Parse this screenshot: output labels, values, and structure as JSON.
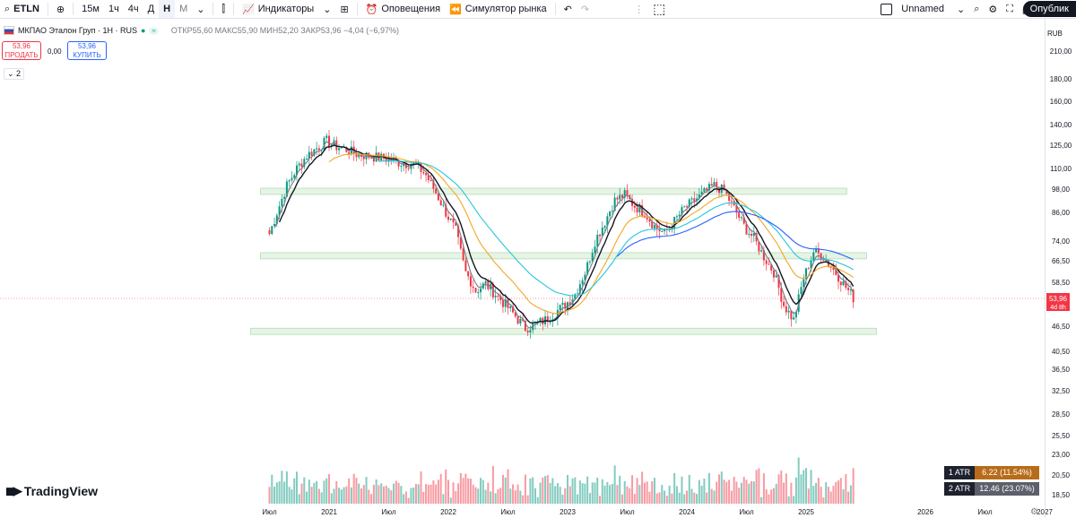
{
  "toolbar": {
    "symbol": "ETLN",
    "intervals": [
      "15м",
      "1ч",
      "4ч",
      "Д",
      "Н",
      "М"
    ],
    "active_interval": "Н",
    "indicators_label": "Индикаторы",
    "alerts_label": "Оповещения",
    "replay_label": "Симулятор рынка",
    "layout_name": "Unnamed",
    "publish_label": "Опублик"
  },
  "legend": {
    "name": "МКПАО Эталон Груп · 1Н · RUS",
    "ohlc_text": "ОТКР55,60  МАКС55,90  МИН52,20  ЗАКР53,96  −4,04 (−6,97%)"
  },
  "trade": {
    "sell_price": "53,96",
    "sell_label": "ПРОДАТЬ",
    "spread": "0,00",
    "buy_price": "53,96",
    "buy_label": "КУПИТЬ"
  },
  "collapse_label": "⌄ 2",
  "logo_text": "TradingView",
  "colors": {
    "up": "#089981",
    "down": "#f23645",
    "ema_black": "#131722",
    "ema_gray": "#787b86",
    "ema_orange": "#f5a623",
    "ema_teal": "#26c6da",
    "ema_blue": "#2962ff",
    "zone": "#4caf50"
  },
  "chart_data": {
    "type": "candlestick",
    "currency": "RUB",
    "price_axis": {
      "scale": "log",
      "ticks": [
        "210,00",
        "180,00",
        "160,00",
        "140,00",
        "125,00",
        "110,00",
        "98,00",
        "86,00",
        "74,00",
        "66,50",
        "58,50",
        "46,50",
        "40,50",
        "36,50",
        "32,50",
        "28,50",
        "25,50",
        "23,00",
        "20,50",
        "18,50"
      ]
    },
    "time_axis": {
      "ticks": [
        "Июл",
        "2021",
        "Июл",
        "2022",
        "Июл",
        "2023",
        "Июл",
        "2024",
        "Июл",
        "2025",
        "2026",
        "Июл",
        "2027"
      ]
    },
    "last_price": {
      "value": "53,96",
      "countdown": "4d 8h"
    },
    "close_approx": [
      {
        "t": "2020-07",
        "c": 74
      },
      {
        "t": "2020-08",
        "c": 86
      },
      {
        "t": "2020-09",
        "c": 100
      },
      {
        "t": "2020-10",
        "c": 110
      },
      {
        "t": "2020-11",
        "c": 118
      },
      {
        "t": "2020-12",
        "c": 123
      },
      {
        "t": "2021-01",
        "c": 128
      },
      {
        "t": "2021-02",
        "c": 124
      },
      {
        "t": "2021-03",
        "c": 122
      },
      {
        "t": "2021-04",
        "c": 119
      },
      {
        "t": "2021-05",
        "c": 118
      },
      {
        "t": "2021-06",
        "c": 117
      },
      {
        "t": "2021-07",
        "c": 116
      },
      {
        "t": "2021-08",
        "c": 114
      },
      {
        "t": "2021-09",
        "c": 113
      },
      {
        "t": "2021-10",
        "c": 112
      },
      {
        "t": "2021-11",
        "c": 106
      },
      {
        "t": "2021-12",
        "c": 96
      },
      {
        "t": "2022-01",
        "c": 86
      },
      {
        "t": "2022-02",
        "c": 78
      },
      {
        "t": "2022-03",
        "c": 62
      },
      {
        "t": "2022-04",
        "c": 56
      },
      {
        "t": "2022-05",
        "c": 58
      },
      {
        "t": "2022-06",
        "c": 55
      },
      {
        "t": "2022-07",
        "c": 52
      },
      {
        "t": "2022-08",
        "c": 49
      },
      {
        "t": "2022-09",
        "c": 46
      },
      {
        "t": "2022-10",
        "c": 47
      },
      {
        "t": "2022-11",
        "c": 48
      },
      {
        "t": "2022-12",
        "c": 50
      },
      {
        "t": "2023-01",
        "c": 52
      },
      {
        "t": "2023-02",
        "c": 55
      },
      {
        "t": "2023-03",
        "c": 62
      },
      {
        "t": "2023-04",
        "c": 74
      },
      {
        "t": "2023-05",
        "c": 82
      },
      {
        "t": "2023-06",
        "c": 92
      },
      {
        "t": "2023-07",
        "c": 95
      },
      {
        "t": "2023-08",
        "c": 89
      },
      {
        "t": "2023-09",
        "c": 86
      },
      {
        "t": "2023-10",
        "c": 80
      },
      {
        "t": "2023-11",
        "c": 77
      },
      {
        "t": "2023-12",
        "c": 82
      },
      {
        "t": "2024-01",
        "c": 88
      },
      {
        "t": "2024-02",
        "c": 92
      },
      {
        "t": "2024-03",
        "c": 96
      },
      {
        "t": "2024-04",
        "c": 100
      },
      {
        "t": "2024-05",
        "c": 97
      },
      {
        "t": "2024-06",
        "c": 88
      },
      {
        "t": "2024-07",
        "c": 80
      },
      {
        "t": "2024-08",
        "c": 75
      },
      {
        "t": "2024-09",
        "c": 68
      },
      {
        "t": "2024-10",
        "c": 62
      },
      {
        "t": "2024-11",
        "c": 52
      },
      {
        "t": "2024-12",
        "c": 48
      },
      {
        "t": "2025-01",
        "c": 60
      },
      {
        "t": "2025-02",
        "c": 70
      },
      {
        "t": "2025-03",
        "c": 68
      },
      {
        "t": "2025-04",
        "c": 63
      },
      {
        "t": "2025-05",
        "c": 58
      },
      {
        "t": "2025-06",
        "c": 54
      }
    ],
    "horizontal_zones": [
      {
        "low": 95.5,
        "high": 98.5
      },
      {
        "low": 67.5,
        "high": 69.5
      },
      {
        "low": 45.0,
        "high": 46.0
      }
    ],
    "atr": [
      {
        "label": "1 ATR",
        "value": "6.22 (11.54%)"
      },
      {
        "label": "2 ATR",
        "value": "12.46 (23.07%)"
      }
    ]
  }
}
